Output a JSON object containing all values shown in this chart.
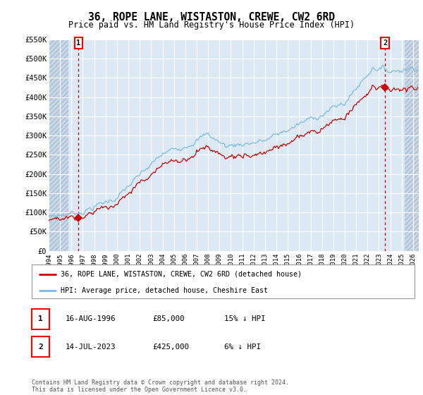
{
  "title": "36, ROPE LANE, WISTASTON, CREWE, CW2 6RD",
  "subtitle": "Price paid vs. HM Land Registry's House Price Index (HPI)",
  "ylim": [
    0,
    550000
  ],
  "yticks": [
    0,
    50000,
    100000,
    150000,
    200000,
    250000,
    300000,
    350000,
    400000,
    450000,
    500000,
    550000
  ],
  "ytick_labels": [
    "£0",
    "£50K",
    "£100K",
    "£150K",
    "£200K",
    "£250K",
    "£300K",
    "£350K",
    "£400K",
    "£450K",
    "£500K",
    "£550K"
  ],
  "xlim_start": 1994.0,
  "xlim_end": 2026.5,
  "bg_color": "#dce9f5",
  "sale1_date": 1996.625,
  "sale1_price": 85000,
  "sale2_date": 2023.54,
  "sale2_price": 425000,
  "hpi_line_color": "#7bbce0",
  "price_line_color": "#cc0000",
  "marker_color": "#cc0000",
  "legend_label1": "36, ROPE LANE, WISTASTON, CREWE, CW2 6RD (detached house)",
  "legend_label2": "HPI: Average price, detached house, Cheshire East",
  "footnote": "Contains HM Land Registry data © Crown copyright and database right 2024.\nThis data is licensed under the Open Government Licence v3.0.",
  "table_row1": [
    "1",
    "16-AUG-1996",
    "£85,000",
    "15% ↓ HPI"
  ],
  "table_row2": [
    "2",
    "14-JUL-2023",
    "£425,000",
    "6% ↓ HPI"
  ],
  "xtick_years": [
    1994,
    1995,
    1996,
    1997,
    1998,
    1999,
    2000,
    2001,
    2002,
    2003,
    2004,
    2005,
    2006,
    2007,
    2008,
    2009,
    2010,
    2011,
    2012,
    2013,
    2014,
    2015,
    2016,
    2017,
    2018,
    2019,
    2020,
    2021,
    2022,
    2023,
    2024,
    2025,
    2026
  ]
}
